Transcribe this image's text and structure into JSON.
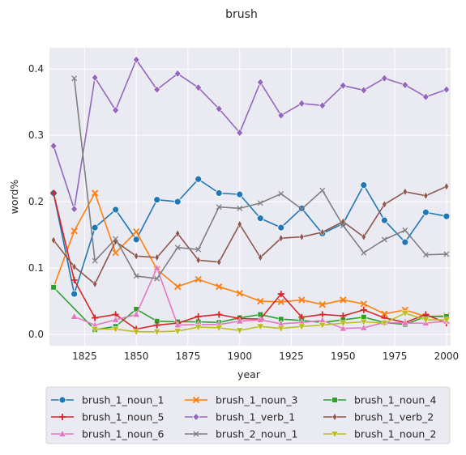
{
  "chart_data": {
    "type": "line",
    "title": "brush",
    "xlabel": "year",
    "ylabel": "word%",
    "xlim": [
      1808,
      2002
    ],
    "ylim": [
      -0.017,
      0.432
    ],
    "x_ticks": [
      1825,
      1850,
      1875,
      1900,
      1925,
      1950,
      1975,
      2000
    ],
    "y_ticks": [
      0.0,
      0.1,
      0.2,
      0.3,
      0.4
    ],
    "grid": true,
    "background": "#eaeaf2",
    "legend": {
      "placement": "bottom",
      "columns": 3
    },
    "x": [
      1810,
      1820,
      1830,
      1840,
      1850,
      1860,
      1870,
      1880,
      1890,
      1900,
      1910,
      1920,
      1930,
      1940,
      1950,
      1960,
      1970,
      1980,
      1990,
      2000
    ],
    "series": [
      {
        "name": "brush_1_noun_1",
        "color": "#1f77b4",
        "marker": "circle",
        "values": [
          0.213,
          0.061,
          0.161,
          0.188,
          0.143,
          0.203,
          0.2,
          0.234,
          0.213,
          0.211,
          0.175,
          0.161,
          0.19,
          0.152,
          0.167,
          0.225,
          0.172,
          0.139,
          0.184,
          0.178
        ]
      },
      {
        "name": "brush_1_noun_3",
        "color": "#ff7f0e",
        "marker": "x",
        "values": [
          0.071,
          0.156,
          0.213,
          0.123,
          0.155,
          0.098,
          0.072,
          0.083,
          0.072,
          0.062,
          0.05,
          0.049,
          0.052,
          0.045,
          0.052,
          0.046,
          0.031,
          0.037,
          0.027,
          0.028
        ]
      },
      {
        "name": "brush_1_noun_4",
        "color": "#2ca02c",
        "marker": "square",
        "values": [
          0.071,
          null,
          0.007,
          0.012,
          0.038,
          0.02,
          0.019,
          0.019,
          0.018,
          0.025,
          0.03,
          0.023,
          0.021,
          0.018,
          0.022,
          0.026,
          0.018,
          0.015,
          0.027,
          0.027
        ]
      },
      {
        "name": "brush_1_noun_5",
        "color": "#d62728",
        "marker": "plus",
        "values": [
          0.213,
          0.082,
          0.025,
          0.03,
          0.008,
          0.014,
          0.017,
          0.027,
          0.03,
          0.024,
          0.023,
          0.061,
          0.026,
          0.03,
          0.028,
          0.037,
          0.025,
          0.018,
          0.03,
          0.017
        ]
      },
      {
        "name": "brush_1_verb_1",
        "color": "#9467bd",
        "marker": "diamond",
        "values": [
          0.284,
          0.189,
          0.387,
          0.338,
          0.414,
          0.369,
          0.393,
          0.372,
          0.34,
          0.304,
          0.38,
          0.33,
          0.348,
          0.345,
          0.375,
          0.368,
          0.386,
          0.376,
          0.358,
          0.369
        ]
      },
      {
        "name": "brush_1_verb_2",
        "color": "#8c564b",
        "marker": "thin-diamond",
        "values": [
          0.142,
          0.102,
          0.076,
          0.14,
          0.118,
          0.116,
          0.152,
          0.112,
          0.109,
          0.166,
          0.116,
          0.145,
          0.147,
          0.154,
          0.17,
          0.147,
          0.196,
          0.215,
          0.209,
          0.223
        ]
      },
      {
        "name": "brush_1_noun_6",
        "color": "#e377c2",
        "marker": "triangle-up",
        "values": [
          null,
          0.027,
          0.014,
          0.022,
          0.03,
          0.1,
          0.014,
          0.015,
          0.015,
          0.02,
          0.022,
          0.016,
          0.018,
          0.021,
          0.009,
          0.01,
          0.018,
          0.017,
          0.017,
          0.02
        ]
      },
      {
        "name": "brush_2_noun_1",
        "color": "#7f7f7f",
        "marker": "x-thin",
        "values": [
          null,
          0.386,
          0.111,
          0.144,
          0.088,
          0.084,
          0.131,
          0.128,
          0.192,
          0.19,
          0.198,
          0.212,
          0.189,
          0.217,
          0.164,
          0.123,
          0.143,
          0.157,
          0.12,
          0.121
        ]
      },
      {
        "name": "brush_1_noun_2",
        "color": "#bcbd22",
        "marker": "triangle-down",
        "values": [
          null,
          null,
          0.008,
          0.008,
          0.004,
          0.004,
          0.005,
          0.011,
          0.01,
          0.006,
          0.012,
          0.009,
          0.012,
          0.014,
          0.017,
          0.019,
          0.017,
          0.032,
          0.022,
          0.022
        ]
      }
    ]
  }
}
